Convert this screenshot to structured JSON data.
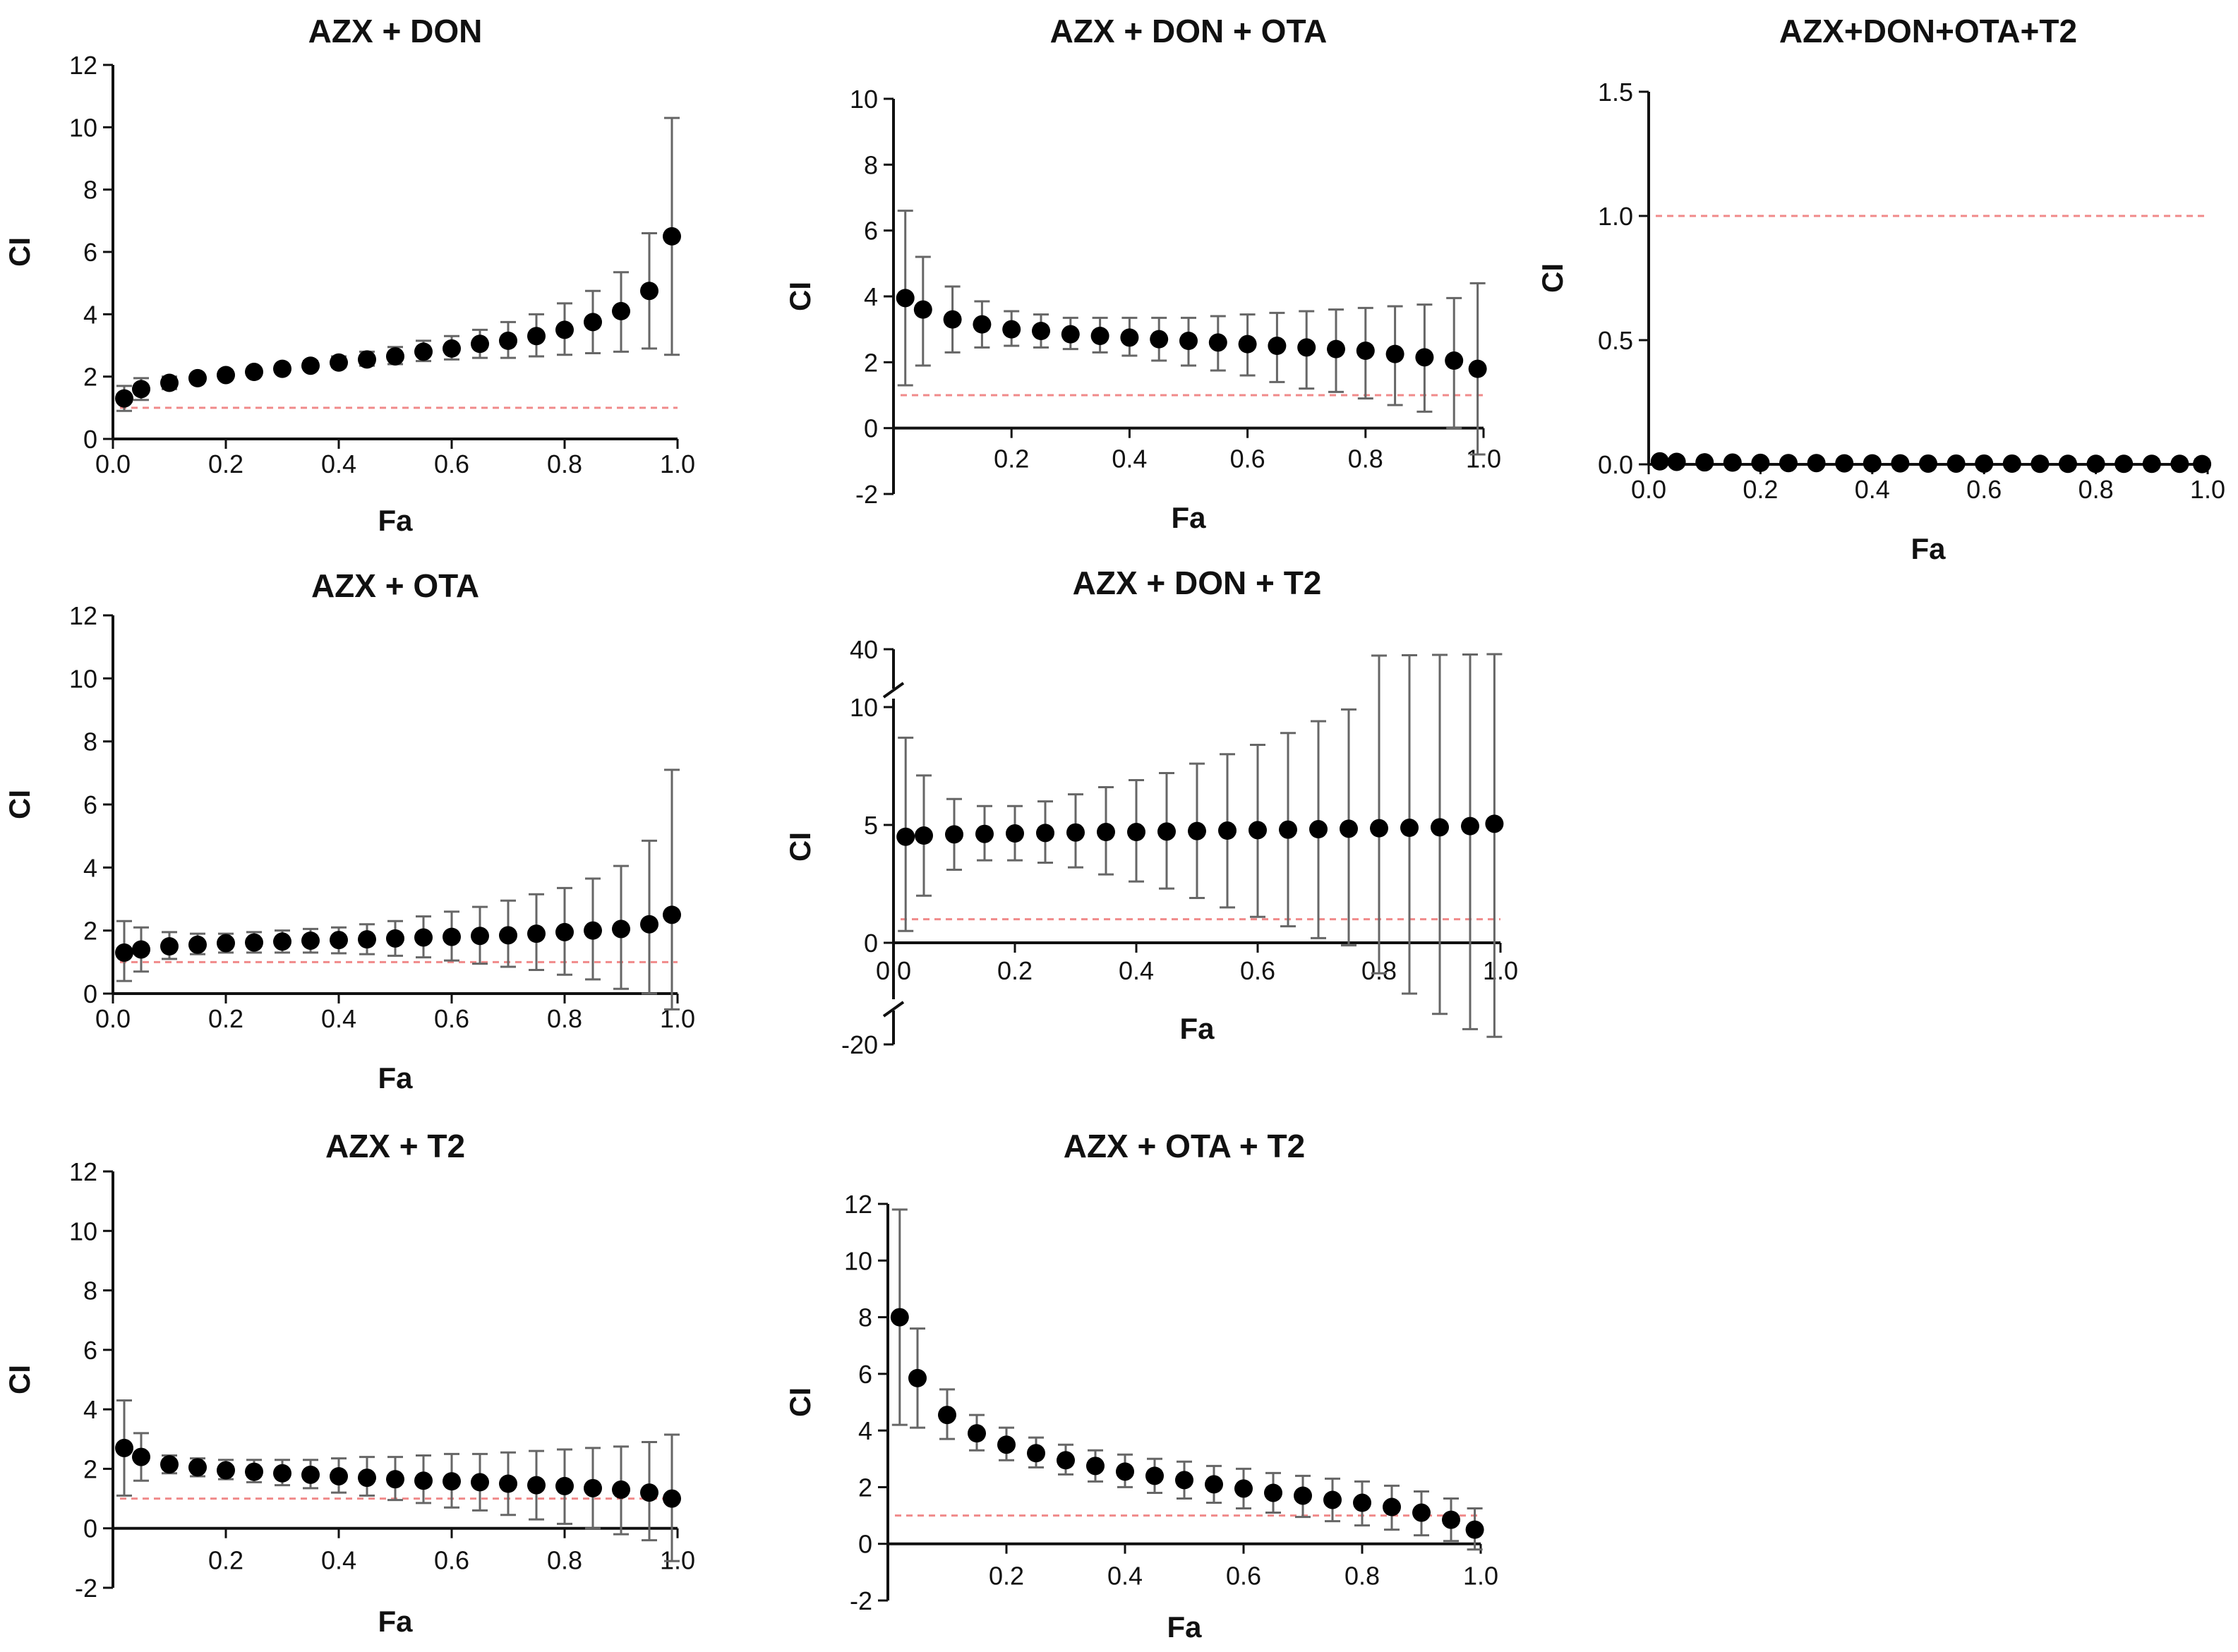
{
  "figure": {
    "background": "#ffffff",
    "point_color": "#000000",
    "errorbar_color": "#666666",
    "reference_line_color": "#f08a8a"
  },
  "chart_data": [
    {
      "id": "azx_don",
      "type": "scatter",
      "title": "AZX + DON",
      "xlabel": "Fa",
      "ylabel": "CI",
      "xlim": [
        0,
        1
      ],
      "ylim": [
        0,
        12
      ],
      "xticks": [
        "0.0",
        "0.2",
        "0.4",
        "0.6",
        "0.8",
        "1.0"
      ],
      "xtick_values": [
        0,
        0.2,
        0.4,
        0.6,
        0.8,
        1.0
      ],
      "yticks": [
        "0",
        "2",
        "4",
        "6",
        "8",
        "10",
        "12"
      ],
      "ytick_values": [
        0,
        2,
        4,
        6,
        8,
        10,
        12
      ],
      "reference_line": 1,
      "x": [
        0.02,
        0.05,
        0.1,
        0.15,
        0.2,
        0.25,
        0.3,
        0.35,
        0.4,
        0.45,
        0.5,
        0.55,
        0.6,
        0.65,
        0.7,
        0.75,
        0.8,
        0.85,
        0.9,
        0.95,
        0.99
      ],
      "y": [
        1.3,
        1.6,
        1.8,
        1.95,
        2.05,
        2.15,
        2.25,
        2.35,
        2.45,
        2.55,
        2.65,
        2.8,
        2.9,
        3.05,
        3.15,
        3.3,
        3.5,
        3.75,
        4.1,
        4.75,
        6.5
      ],
      "err_low": [
        0.9,
        1.25,
        1.6,
        1.85,
        1.95,
        2.1,
        2.15,
        2.25,
        2.3,
        2.35,
        2.4,
        2.5,
        2.55,
        2.6,
        2.6,
        2.65,
        2.7,
        2.75,
        2.8,
        2.9,
        2.7
      ],
      "err_high": [
        1.7,
        1.95,
        2.0,
        2.05,
        2.15,
        2.25,
        2.35,
        2.5,
        2.65,
        2.8,
        2.95,
        3.15,
        3.3,
        3.5,
        3.75,
        4.0,
        4.35,
        4.75,
        5.35,
        6.6,
        10.3
      ]
    },
    {
      "id": "azx_don_ota",
      "type": "scatter",
      "title": "AZX + DON + OTA",
      "xlabel": "Fa",
      "ylabel": "CI",
      "xlim": [
        0,
        1
      ],
      "ylim": [
        -2,
        10
      ],
      "xticks": [
        "0.2",
        "0.4",
        "0.6",
        "0.8",
        "1.0"
      ],
      "xtick_values": [
        0.2,
        0.4,
        0.6,
        0.8,
        1.0
      ],
      "yticks": [
        "-2",
        "0",
        "2",
        "4",
        "6",
        "8",
        "10"
      ],
      "ytick_values": [
        -2,
        0,
        2,
        4,
        6,
        8,
        10
      ],
      "reference_line": 1,
      "x": [
        0.02,
        0.05,
        0.1,
        0.15,
        0.2,
        0.25,
        0.3,
        0.35,
        0.4,
        0.45,
        0.5,
        0.55,
        0.6,
        0.65,
        0.7,
        0.75,
        0.8,
        0.85,
        0.9,
        0.95,
        0.99
      ],
      "y": [
        3.95,
        3.6,
        3.3,
        3.15,
        3.0,
        2.95,
        2.85,
        2.8,
        2.75,
        2.7,
        2.65,
        2.6,
        2.55,
        2.5,
        2.45,
        2.4,
        2.35,
        2.25,
        2.15,
        2.05,
        1.8
      ],
      "err_low": [
        1.3,
        1.9,
        2.3,
        2.45,
        2.5,
        2.45,
        2.4,
        2.3,
        2.2,
        2.05,
        1.9,
        1.75,
        1.6,
        1.4,
        1.2,
        1.1,
        0.9,
        0.7,
        0.5,
        0.0,
        -0.8
      ],
      "err_high": [
        6.6,
        5.2,
        4.3,
        3.85,
        3.55,
        3.45,
        3.35,
        3.35,
        3.35,
        3.35,
        3.35,
        3.4,
        3.45,
        3.5,
        3.55,
        3.6,
        3.65,
        3.7,
        3.75,
        3.95,
        4.4
      ]
    },
    {
      "id": "azx_don_ota_t2",
      "type": "scatter",
      "title": "AZX+DON+OTA+T2",
      "xlabel": "Fa",
      "ylabel": "CI",
      "xlim": [
        0,
        1
      ],
      "ylim": [
        0,
        1.5
      ],
      "xticks": [
        "0.0",
        "0.2",
        "0.4",
        "0.6",
        "0.8",
        "1.0"
      ],
      "xtick_values": [
        0,
        0.2,
        0.4,
        0.6,
        0.8,
        1.0
      ],
      "yticks": [
        "0.0",
        "0.5",
        "1.0",
        "1.5"
      ],
      "ytick_values": [
        0,
        0.5,
        1.0,
        1.5
      ],
      "reference_line": 1,
      "x": [
        0.02,
        0.05,
        0.1,
        0.15,
        0.2,
        0.25,
        0.3,
        0.35,
        0.4,
        0.45,
        0.5,
        0.55,
        0.6,
        0.65,
        0.7,
        0.75,
        0.8,
        0.85,
        0.9,
        0.95,
        0.99
      ],
      "y": [
        0.012,
        0.01,
        0.008,
        0.007,
        0.006,
        0.005,
        0.005,
        0.004,
        0.004,
        0.004,
        0.003,
        0.003,
        0.003,
        0.003,
        0.002,
        0.002,
        0.002,
        0.002,
        0.002,
        0.002,
        0.001
      ],
      "err_low": [
        0.005,
        0.004,
        0.003,
        0.003,
        -0.01,
        -0.01,
        -0.01,
        -0.01,
        -0.01,
        -0.01,
        -0.01,
        -0.01,
        -0.01,
        -0.01,
        -0.01,
        -0.01,
        -0.015,
        -0.015,
        -0.015,
        -0.015,
        -0.015
      ],
      "err_high": [
        0.02,
        0.016,
        0.013,
        0.011,
        0.02,
        0.02,
        0.02,
        0.02,
        0.02,
        0.02,
        0.02,
        0.02,
        0.02,
        0.02,
        0.02,
        0.02,
        0.02,
        0.02,
        0.02,
        0.02,
        0.02
      ]
    },
    {
      "id": "azx_ota",
      "type": "scatter",
      "title": "AZX + OTA",
      "xlabel": "Fa",
      "ylabel": "CI",
      "xlim": [
        0,
        1
      ],
      "ylim": [
        0,
        12
      ],
      "xticks": [
        "0.0",
        "0.2",
        "0.4",
        "0.6",
        "0.8",
        "1.0"
      ],
      "xtick_values": [
        0,
        0.2,
        0.4,
        0.6,
        0.8,
        1.0
      ],
      "yticks": [
        "0",
        "2",
        "4",
        "6",
        "8",
        "10",
        "12"
      ],
      "ytick_values": [
        0,
        2,
        4,
        6,
        8,
        10,
        12
      ],
      "reference_line": 1,
      "x": [
        0.02,
        0.05,
        0.1,
        0.15,
        0.2,
        0.25,
        0.3,
        0.35,
        0.4,
        0.45,
        0.5,
        0.55,
        0.6,
        0.65,
        0.7,
        0.75,
        0.8,
        0.85,
        0.9,
        0.95,
        0.99
      ],
      "y": [
        1.3,
        1.4,
        1.5,
        1.55,
        1.6,
        1.62,
        1.65,
        1.68,
        1.7,
        1.72,
        1.75,
        1.78,
        1.8,
        1.83,
        1.85,
        1.9,
        1.95,
        2.0,
        2.05,
        2.2,
        2.5
      ],
      "err_low": [
        0.4,
        0.7,
        1.1,
        1.25,
        1.3,
        1.3,
        1.3,
        1.3,
        1.28,
        1.25,
        1.2,
        1.15,
        1.05,
        0.95,
        0.85,
        0.75,
        0.6,
        0.45,
        0.15,
        0.0,
        -0.5
      ],
      "err_high": [
        2.3,
        2.1,
        1.95,
        1.9,
        1.9,
        1.95,
        2.0,
        2.05,
        2.1,
        2.2,
        2.3,
        2.45,
        2.6,
        2.75,
        2.95,
        3.15,
        3.35,
        3.65,
        4.05,
        4.85,
        7.1
      ]
    },
    {
      "id": "azx_don_t2",
      "type": "scatter",
      "title": "AZX + DON + T2",
      "xlabel": "Fa",
      "ylabel": "CI",
      "xlim": [
        0,
        1
      ],
      "ylim": [
        -20,
        40
      ],
      "axis_break": [
        10,
        40
      ],
      "xticks": [
        "0.0",
        "0.2",
        "0.4",
        "0.6",
        "0.8",
        "1.0"
      ],
      "xtick_values": [
        0,
        0.2,
        0.4,
        0.6,
        0.8,
        1.0
      ],
      "yticks": [
        "-20",
        "0",
        "5",
        "10",
        "40"
      ],
      "ytick_values": [
        -20,
        0,
        5,
        10,
        40
      ],
      "reference_line": 1,
      "x": [
        0.02,
        0.05,
        0.1,
        0.15,
        0.2,
        0.25,
        0.3,
        0.35,
        0.4,
        0.45,
        0.5,
        0.55,
        0.6,
        0.65,
        0.7,
        0.75,
        0.8,
        0.85,
        0.9,
        0.95,
        0.99
      ],
      "y": [
        4.5,
        4.55,
        4.6,
        4.62,
        4.64,
        4.66,
        4.68,
        4.7,
        4.7,
        4.72,
        4.74,
        4.76,
        4.78,
        4.8,
        4.82,
        4.84,
        4.86,
        4.88,
        4.9,
        4.95,
        5.05
      ],
      "err_low": [
        0.5,
        2.0,
        3.1,
        3.5,
        3.5,
        3.4,
        3.2,
        2.9,
        2.6,
        2.3,
        1.9,
        1.5,
        1.1,
        0.7,
        0.2,
        -0.5,
        -6.0,
        -10.0,
        -14.0,
        -17.0,
        -18.5
      ],
      "err_high": [
        8.7,
        7.1,
        6.1,
        5.8,
        5.8,
        6.0,
        6.3,
        6.6,
        6.9,
        7.2,
        7.6,
        8.0,
        8.4,
        8.9,
        9.4,
        9.9,
        31.0,
        31.5,
        32.0,
        32.5,
        33.0
      ]
    },
    {
      "id": "azx_t2",
      "type": "scatter",
      "title": "AZX + T2",
      "xlabel": "Fa",
      "ylabel": "CI",
      "xlim": [
        0,
        1
      ],
      "ylim": [
        -2,
        12
      ],
      "xticks": [
        "0.2",
        "0.4",
        "0.6",
        "0.8",
        "1.0"
      ],
      "xtick_values": [
        0.2,
        0.4,
        0.6,
        0.8,
        1.0
      ],
      "yticks": [
        "-2",
        "0",
        "2",
        "4",
        "6",
        "8",
        "10",
        "12"
      ],
      "ytick_values": [
        -2,
        0,
        2,
        4,
        6,
        8,
        10,
        12
      ],
      "reference_line": 1,
      "x": [
        0.02,
        0.05,
        0.1,
        0.15,
        0.2,
        0.25,
        0.3,
        0.35,
        0.4,
        0.45,
        0.5,
        0.55,
        0.6,
        0.65,
        0.7,
        0.75,
        0.8,
        0.85,
        0.9,
        0.95,
        0.99
      ],
      "y": [
        2.7,
        2.4,
        2.15,
        2.05,
        1.95,
        1.9,
        1.85,
        1.8,
        1.75,
        1.7,
        1.65,
        1.6,
        1.58,
        1.55,
        1.5,
        1.45,
        1.42,
        1.35,
        1.3,
        1.2,
        1.0
      ],
      "err_low": [
        1.1,
        1.6,
        1.85,
        1.75,
        1.65,
        1.55,
        1.45,
        1.35,
        1.2,
        1.1,
        0.95,
        0.85,
        0.7,
        0.6,
        0.45,
        0.3,
        0.15,
        0.0,
        -0.2,
        -0.4,
        -1.1
      ],
      "err_high": [
        4.3,
        3.2,
        2.45,
        2.35,
        2.3,
        2.3,
        2.3,
        2.3,
        2.35,
        2.4,
        2.4,
        2.45,
        2.5,
        2.5,
        2.55,
        2.6,
        2.65,
        2.7,
        2.75,
        2.9,
        3.15
      ]
    },
    {
      "id": "azx_ota_t2",
      "type": "scatter",
      "title": "AZX + OTA + T2",
      "xlabel": "Fa",
      "ylabel": "CI",
      "xlim": [
        0,
        1
      ],
      "ylim": [
        -2,
        12
      ],
      "xticks": [
        "0.2",
        "0.4",
        "0.6",
        "0.8",
        "1.0"
      ],
      "xtick_values": [
        0.2,
        0.4,
        0.6,
        0.8,
        1.0
      ],
      "yticks": [
        "-2",
        "0",
        "2",
        "4",
        "6",
        "8",
        "10",
        "12"
      ],
      "ytick_values": [
        -2,
        0,
        2,
        4,
        6,
        8,
        10,
        12
      ],
      "reference_line": 1,
      "x": [
        0.02,
        0.05,
        0.1,
        0.15,
        0.2,
        0.25,
        0.3,
        0.35,
        0.4,
        0.45,
        0.5,
        0.55,
        0.6,
        0.65,
        0.7,
        0.75,
        0.8,
        0.85,
        0.9,
        0.95,
        0.99
      ],
      "y": [
        8.0,
        5.85,
        4.55,
        3.9,
        3.5,
        3.2,
        2.95,
        2.75,
        2.55,
        2.4,
        2.25,
        2.1,
        1.95,
        1.8,
        1.7,
        1.55,
        1.45,
        1.3,
        1.1,
        0.85,
        0.5
      ],
      "err_low": [
        4.2,
        4.1,
        3.7,
        3.3,
        2.95,
        2.7,
        2.45,
        2.2,
        2.0,
        1.8,
        1.6,
        1.45,
        1.25,
        1.1,
        0.95,
        0.8,
        0.65,
        0.5,
        0.3,
        0.1,
        -0.2
      ],
      "err_high": [
        11.8,
        7.6,
        5.45,
        4.55,
        4.1,
        3.75,
        3.5,
        3.3,
        3.15,
        3.0,
        2.9,
        2.75,
        2.65,
        2.5,
        2.4,
        2.3,
        2.2,
        2.05,
        1.85,
        1.6,
        1.25
      ]
    }
  ]
}
